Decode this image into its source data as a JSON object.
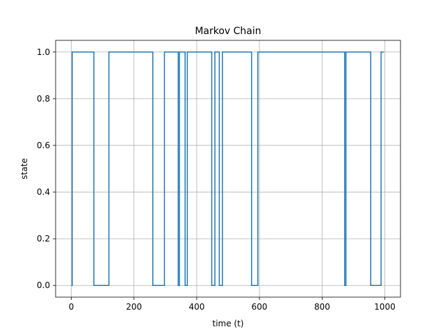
{
  "chart_data": {
    "type": "line",
    "title": "Markov Chain",
    "xlabel": "time (t)",
    "ylabel": "state",
    "xlim": [
      -50,
      1050
    ],
    "ylim": [
      -0.05,
      1.05
    ],
    "grid": true,
    "x_ticks": [
      0,
      200,
      400,
      600,
      800,
      1000
    ],
    "y_ticks": [
      0.0,
      0.2,
      0.4,
      0.6,
      0.8,
      1.0
    ],
    "x_tick_labels": [
      "0",
      "200",
      "400",
      "600",
      "800",
      "1000"
    ],
    "y_tick_labels": [
      "0.0",
      "0.2",
      "0.4",
      "0.6",
      "0.8",
      "1.0"
    ],
    "step": true,
    "series": [
      {
        "color": "#1f77b4",
        "x": [
          0,
          3,
          72,
          120,
          260,
          297,
          341,
          345,
          363,
          370,
          448,
          458,
          472,
          482,
          575,
          595,
          598,
          872,
          876,
          880,
          955,
          988,
          997
        ],
        "y": [
          0,
          1,
          0,
          1,
          0,
          1,
          0,
          1,
          0,
          1,
          0,
          1,
          0,
          1,
          0,
          1,
          1,
          0,
          1,
          1,
          0,
          1,
          1
        ]
      }
    ]
  }
}
